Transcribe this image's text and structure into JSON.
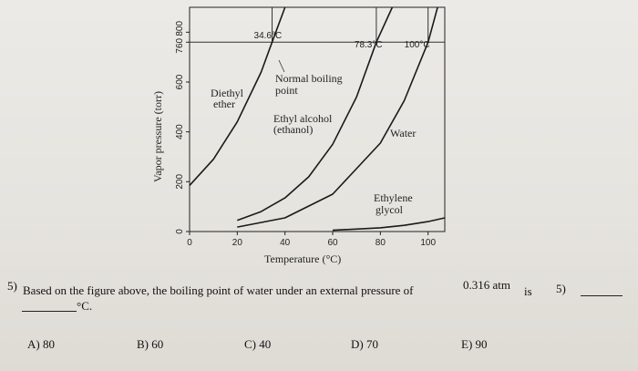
{
  "chart_data": {
    "type": "line",
    "xlabel": "Temperature (°C)",
    "ylabel": "Vapor pressure (torr)",
    "x_ticks": [
      0,
      20,
      40,
      60,
      80,
      100
    ],
    "y_ticks": [
      0,
      200,
      400,
      600,
      760,
      800
    ],
    "xlim": [
      0,
      107
    ],
    "ylim": [
      0,
      900
    ],
    "series": [
      {
        "name": "Diethyl ether",
        "points": [
          [
            0,
            185
          ],
          [
            10,
            290
          ],
          [
            20,
            440
          ],
          [
            30,
            640
          ],
          [
            34.6,
            760
          ],
          [
            40,
            900
          ]
        ]
      },
      {
        "name": "Ethyl alcohol (ethanol)",
        "points": [
          [
            20,
            45
          ],
          [
            30,
            80
          ],
          [
            40,
            135
          ],
          [
            50,
            220
          ],
          [
            60,
            350
          ],
          [
            70,
            540
          ],
          [
            78.3,
            760
          ],
          [
            85,
            900
          ]
        ]
      },
      {
        "name": "Water",
        "points": [
          [
            20,
            18
          ],
          [
            40,
            55
          ],
          [
            60,
            150
          ],
          [
            80,
            355
          ],
          [
            90,
            525
          ],
          [
            100,
            760
          ],
          [
            104,
            900
          ]
        ]
      },
      {
        "name": "Ethylene glycol",
        "points": [
          [
            60,
            5
          ],
          [
            80,
            15
          ],
          [
            90,
            25
          ],
          [
            100,
            40
          ],
          [
            107,
            55
          ]
        ]
      }
    ],
    "annotations": [
      "34.6°C",
      "78.3°C",
      "100°C",
      "Normal boiling point"
    ],
    "series_labels": {
      "ether": [
        "Diethyl",
        "ether"
      ],
      "ethanol": [
        "Ethyl alcohol",
        "(ethanol)"
      ],
      "water": [
        "Water"
      ],
      "glycol": [
        "Ethylene",
        "glycol"
      ]
    },
    "normal_bp_label": [
      "Normal boiling",
      "point"
    ]
  },
  "question": {
    "number": "5)",
    "text_before": "Based on the figure above, the boiling point of water under an external pressure of",
    "pressure": "0.316 atm",
    "text_is": "is",
    "unit": "°C.",
    "answer_number": "5)"
  },
  "choices": [
    {
      "label": "A) 80"
    },
    {
      "label": "B) 60"
    },
    {
      "label": "C) 40"
    },
    {
      "label": "D) 70"
    },
    {
      "label": "E) 90"
    }
  ]
}
